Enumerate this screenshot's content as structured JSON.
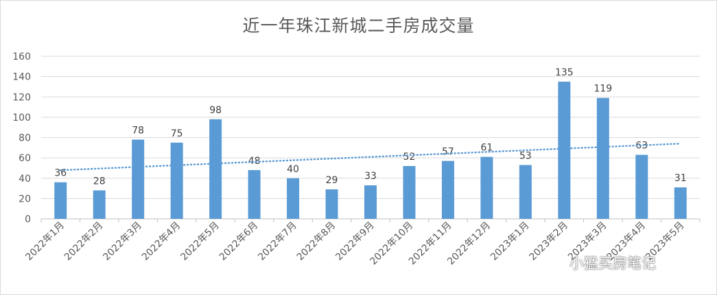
{
  "chart_data": {
    "type": "bar",
    "title": "近一年珠江新城二手房成交量",
    "categories": [
      "2022年1月",
      "2022年2月",
      "2022年3月",
      "2022年4月",
      "2022年5月",
      "2022年6月",
      "2022年7月",
      "2022年8月",
      "2022年9月",
      "2022年10月",
      "2022年11月",
      "2022年12月",
      "2023年1月",
      "2023年2月",
      "2023年3月",
      "2023年4月",
      "2023年5月"
    ],
    "values": [
      36,
      28,
      78,
      75,
      98,
      48,
      40,
      29,
      33,
      52,
      57,
      61,
      53,
      135,
      119,
      63,
      31
    ],
    "ylim": [
      0,
      160
    ],
    "yticks": [
      0,
      20,
      40,
      60,
      80,
      100,
      120,
      140,
      160
    ],
    "xlabel": "",
    "ylabel": "",
    "grid": true,
    "trendline": "linear, dotted",
    "data_labels": true,
    "bar_color": "#5b9bd5",
    "trend_color": "#5b9bd5",
    "grid_color": "#d9d9d9",
    "text_color": "#595959"
  },
  "watermark": {
    "text": "小猛买房笔记",
    "icon": "wechat-icon"
  }
}
